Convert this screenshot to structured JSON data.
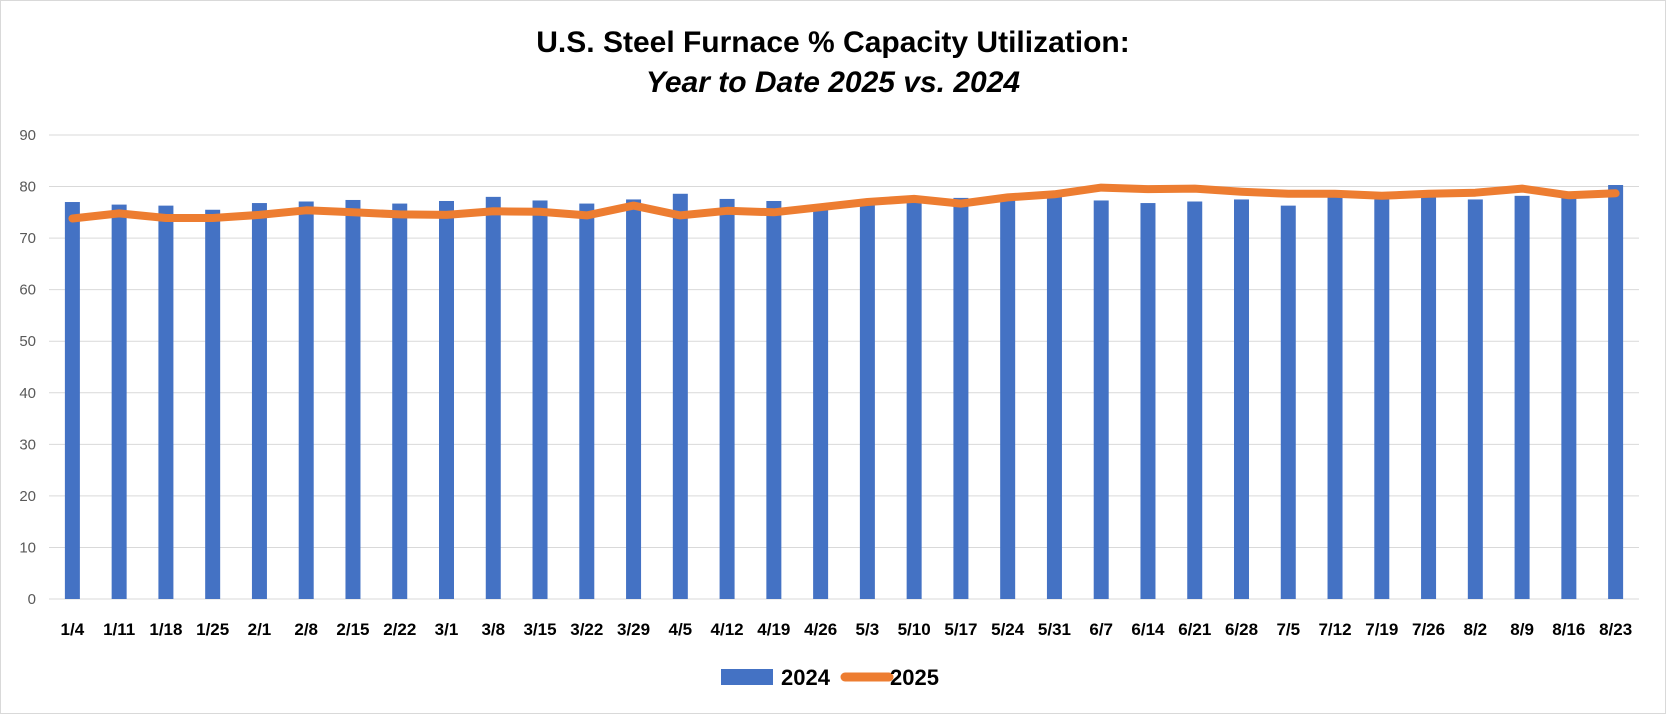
{
  "chart_data": {
    "type": "bar",
    "title": "U.S. Steel Furnace % Capacity Utilization:",
    "subtitle": "Year to Date 2025 vs. 2024",
    "xlabel": "",
    "ylabel": "",
    "ylim": [
      0,
      90
    ],
    "yticks": [
      0,
      10,
      20,
      30,
      40,
      50,
      60,
      70,
      80,
      90
    ],
    "grid": true,
    "legend_position": "bottom",
    "categories": [
      "1/4",
      "1/11",
      "1/18",
      "1/25",
      "2/1",
      "2/8",
      "2/15",
      "2/22",
      "3/1",
      "3/8",
      "3/15",
      "3/22",
      "3/29",
      "4/5",
      "4/12",
      "4/19",
      "4/26",
      "5/3",
      "5/10",
      "5/17",
      "5/24",
      "5/31",
      "6/7",
      "6/14",
      "6/21",
      "6/28",
      "7/5",
      "7/12",
      "7/19",
      "7/26",
      "8/2",
      "8/9",
      "8/16",
      "8/23"
    ],
    "series": [
      {
        "name": "2024",
        "kind": "bar",
        "color": "#4472c4",
        "values": [
          77.0,
          76.5,
          76.3,
          75.5,
          76.8,
          77.1,
          77.4,
          76.7,
          77.2,
          78.0,
          77.3,
          76.7,
          77.5,
          78.6,
          77.6,
          77.2,
          76.0,
          77.0,
          77.2,
          77.8,
          77.5,
          78.0,
          77.3,
          76.8,
          77.1,
          77.5,
          76.3,
          78.0,
          77.5,
          78.0,
          77.5,
          78.2,
          78.0,
          80.3
        ]
      },
      {
        "name": "2025",
        "kind": "line",
        "color": "#ed7d31",
        "values": [
          73.8,
          74.8,
          73.9,
          73.9,
          74.5,
          75.4,
          75.0,
          74.6,
          74.5,
          75.2,
          75.1,
          74.4,
          76.3,
          74.4,
          75.3,
          75.0,
          76.0,
          77.0,
          77.6,
          76.7,
          77.9,
          78.5,
          79.8,
          79.5,
          79.6,
          79.0,
          78.6,
          78.6,
          78.2,
          78.6,
          78.8,
          79.6,
          78.3,
          78.7
        ]
      }
    ]
  }
}
